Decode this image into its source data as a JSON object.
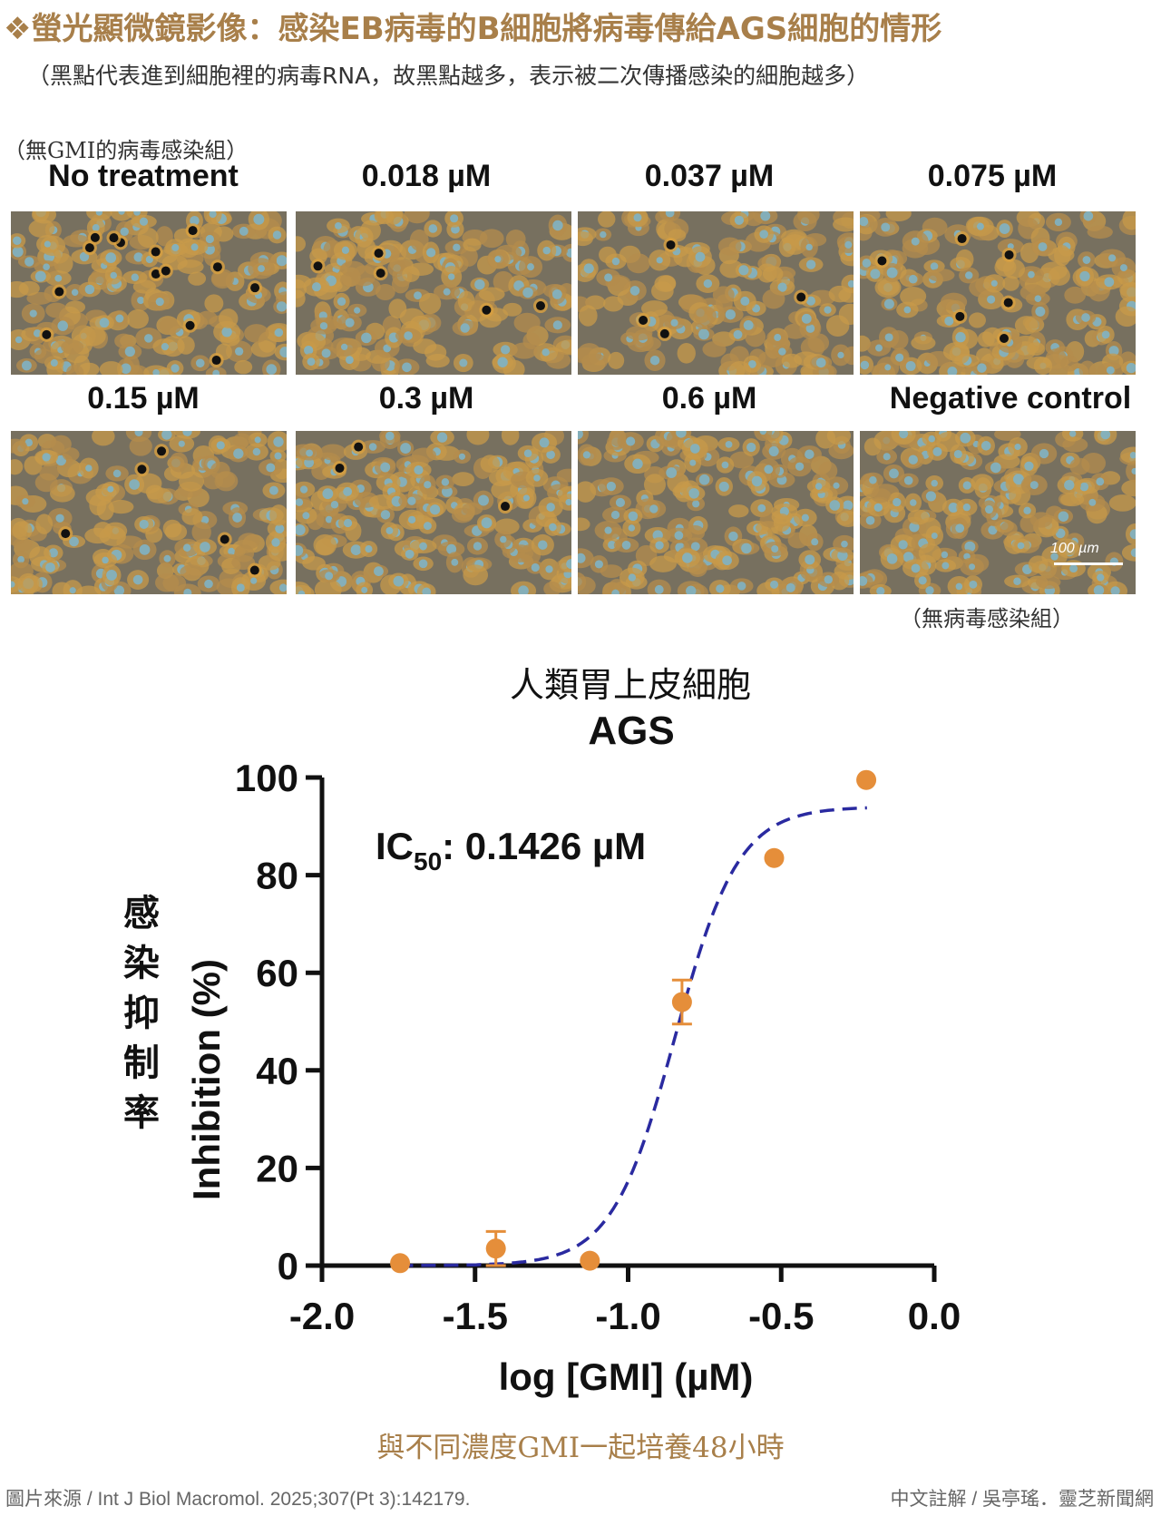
{
  "header": {
    "title": "❖螢光顯微鏡影像：感染EB病毒的B細胞將病毒傳給AGS細胞的情形",
    "subtitle": "（黑點代表進到細胞裡的病毒RNA，故黑點越多，表示被二次傳播感染的細胞越多）"
  },
  "notes": {
    "no_gmi": "（無GMI的病毒感染組）",
    "no_virus": "（無病毒感染組）"
  },
  "panels": [
    {
      "label": "No treatment",
      "dots": 14
    },
    {
      "label": "0.018 µM",
      "dots": 5
    },
    {
      "label": "0.037 µM",
      "dots": 4
    },
    {
      "label": "0.075 µM",
      "dots": 6
    },
    {
      "label": "0.15 µM",
      "dots": 5
    },
    {
      "label": "0.3 µM",
      "dots": 3
    },
    {
      "label": "0.6 µM",
      "dots": 0
    },
    {
      "label": "Negative control",
      "dots": 0
    }
  ],
  "scale_bar": {
    "label": "100 µm"
  },
  "chart_data": {
    "type": "scatter",
    "title_cn": "人類胃上皮細胞",
    "title": "AGS",
    "annotation_prefix": "IC",
    "annotation_sub": "50",
    "annotation_value": ": 0.1426 µM",
    "xlabel": "log [GMI] (µM)",
    "ylabel": "Inhibition (%)",
    "ylabel_cn": "感染抑制率",
    "xlim": [
      -2.0,
      0.0
    ],
    "ylim": [
      0,
      100
    ],
    "xticks": [
      -2.0,
      -1.5,
      -1.0,
      -0.5,
      0.0
    ],
    "xtick_labels": [
      "-2.0",
      "-1.5",
      "-1.0",
      "-0.5",
      "0.0"
    ],
    "yticks": [
      0,
      20,
      40,
      60,
      80,
      100
    ],
    "ytick_labels": [
      "0",
      "20",
      "40",
      "60",
      "80",
      "100"
    ],
    "points": [
      {
        "x": -1.745,
        "y": 0.5,
        "err": 0
      },
      {
        "x": -1.432,
        "y": 3.5,
        "err": 3.5
      },
      {
        "x": -1.125,
        "y": 1.0,
        "err": 0
      },
      {
        "x": -0.824,
        "y": 54,
        "err": 4.5
      },
      {
        "x": -0.523,
        "y": 83.5,
        "err": 0
      },
      {
        "x": -0.222,
        "y": 99.5,
        "err": 0
      }
    ],
    "fit": {
      "bottom": 0,
      "top": 94,
      "logIC50": -0.846,
      "hill": 4.2,
      "x_range": [
        -1.75,
        -0.22
      ]
    },
    "colors": {
      "points": "#e58e3a",
      "fit": "#2a2aa0",
      "axis": "#111111"
    }
  },
  "caption": "與不同濃度GMI一起培養48小時",
  "footer": {
    "source": "圖片來源 / Int J Biol Macromol. 2025;307(Pt 3):142179.",
    "credit": "中文註解 / 吳亭瑤．靈芝新聞網"
  }
}
